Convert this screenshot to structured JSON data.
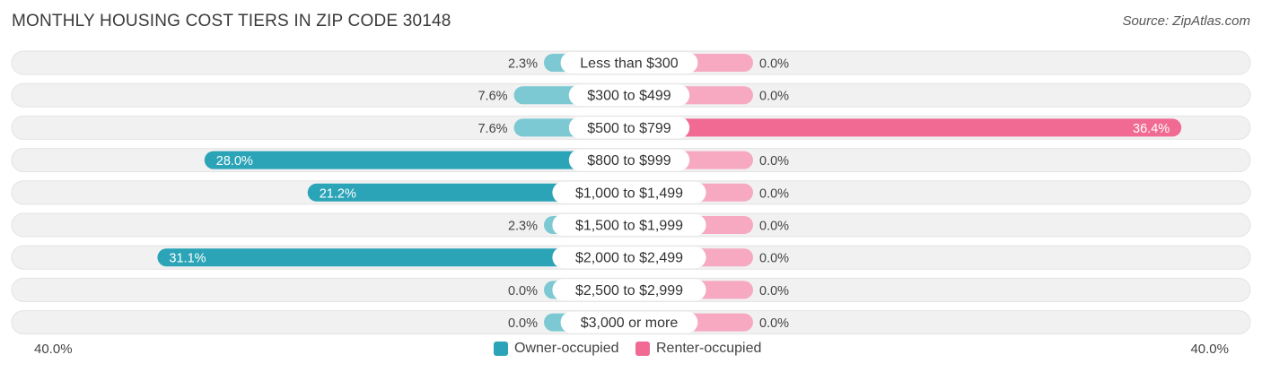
{
  "title": "MONTHLY HOUSING COST TIERS IN ZIP CODE 30148",
  "source": "Source: ZipAtlas.com",
  "colors": {
    "owner": "#2ba4b7",
    "owner_light": "#7cc9d3",
    "renter": "#f06a94",
    "renter_light": "#f6a9c1",
    "track": "#f1f1f1"
  },
  "legend": {
    "owner": "Owner-occupied",
    "renter": "Renter-occupied"
  },
  "axis": {
    "left_label": "40.0%",
    "right_label": "40.0%"
  },
  "chart_data": {
    "type": "bar",
    "orientation": "horizontal-diverging",
    "categories": [
      "Less than $300",
      "$300 to $499",
      "$500 to $799",
      "$800 to $999",
      "$1,000 to $1,499",
      "$1,500 to $1,999",
      "$2,000 to $2,499",
      "$2,500 to $2,999",
      "$3,000 or more"
    ],
    "series": [
      {
        "name": "Owner-occupied",
        "values": [
          2.3,
          7.6,
          7.6,
          28.0,
          21.2,
          2.3,
          31.1,
          0.0,
          0.0
        ],
        "labels": [
          "2.3%",
          "7.6%",
          "7.6%",
          "28.0%",
          "21.2%",
          "2.3%",
          "31.1%",
          "0.0%",
          "0.0%"
        ]
      },
      {
        "name": "Renter-occupied",
        "values": [
          0.0,
          0.0,
          36.4,
          0.0,
          0.0,
          0.0,
          0.0,
          0.0,
          0.0
        ],
        "labels": [
          "0.0%",
          "0.0%",
          "36.4%",
          "0.0%",
          "0.0%",
          "0.0%",
          "0.0%",
          "0.0%",
          "0.0%"
        ]
      }
    ],
    "xlim": [
      -40,
      40
    ],
    "legend_position": "bottom-center"
  }
}
